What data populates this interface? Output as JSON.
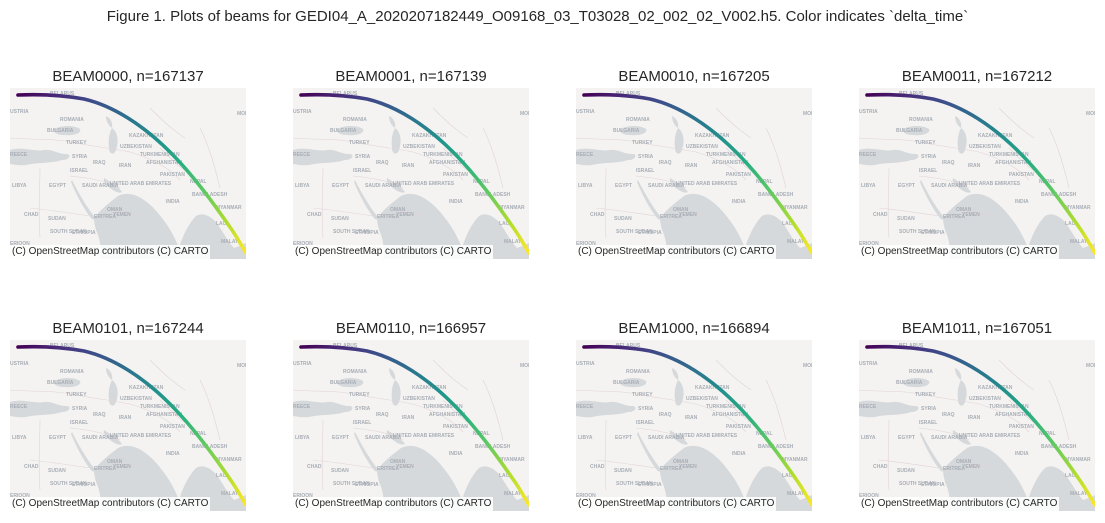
{
  "figure": {
    "title": "Figure 1. Plots of beams for GEDI04_A_2020207182449_O09168_03_T03028_02_002_02_V002.h5. Color indicates `delta_time`"
  },
  "attribution": "(C) OpenStreetMap contributors (C) CARTO",
  "colormap": {
    "name": "viridis",
    "stops": [
      "#440154",
      "#472d7b",
      "#3b528b",
      "#2c728e",
      "#21918c",
      "#28ae80",
      "#5ec962",
      "#addc30",
      "#fde725"
    ]
  },
  "basemap": {
    "colors": {
      "land": "#f4f3f1",
      "water": "#d5d9dc",
      "border": "#e4d2d6",
      "label": "#a8aeb6"
    },
    "labels": [
      "BELARUS",
      "USTRIA",
      "ROMANIA",
      "BULGARIA",
      "KAZAKHSTAN",
      "MONG",
      "TURKEY",
      "UZBEKISTAN",
      "TURKMENISTAN",
      "REECE",
      "SYRIA",
      "IRAQ",
      "IRAN",
      "AFGHANISTAN",
      "ISRAEL",
      "PAKISTAN",
      "NEPAL",
      "LIBYA",
      "EGYPT",
      "SAUDI ARABIA",
      "UNITED ARAB EMIRATES",
      "INDIA",
      "BANGLADESH",
      "OMAN",
      "MYANMAR",
      "CHAD",
      "SUDAN",
      "ERITREA",
      "YEMEN",
      "SOUTH SUDAN",
      "ETHIOPIA",
      "LAO",
      "KENYA",
      "MALAY",
      "ERIOON"
    ]
  },
  "panels": [
    {
      "name": "BEAM0000",
      "title": "BEAM0000, n=167137",
      "n": 167137
    },
    {
      "name": "BEAM0001",
      "title": "BEAM0001, n=167139",
      "n": 167139
    },
    {
      "name": "BEAM0010",
      "title": "BEAM0010, n=167205",
      "n": 167205
    },
    {
      "name": "BEAM0011",
      "title": "BEAM0011, n=167212",
      "n": 167212
    },
    {
      "name": "BEAM0101",
      "title": "BEAM0101, n=167244",
      "n": 167244
    },
    {
      "name": "BEAM0110",
      "title": "BEAM0110, n=166957",
      "n": 166957
    },
    {
      "name": "BEAM1000",
      "title": "BEAM1000, n=166894",
      "n": 166894
    },
    {
      "name": "BEAM1011",
      "title": "BEAM1011, n=167051",
      "n": 167051
    }
  ]
}
